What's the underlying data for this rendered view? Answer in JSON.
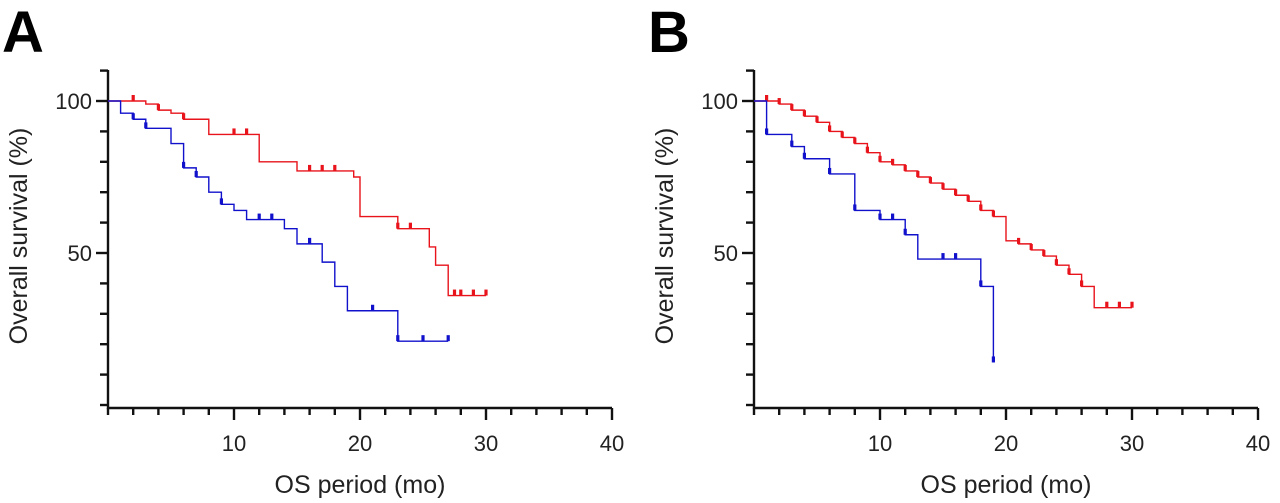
{
  "chart_data": [
    {
      "type": "line",
      "panel_label": "A",
      "xlabel": "OS period (mo)",
      "ylabel": "Overall survival (%)",
      "xlim": [
        0,
        40
      ],
      "ylim": [
        0,
        110
      ],
      "xticks": [
        10,
        20,
        30,
        40
      ],
      "yticks_labeled": [
        50,
        100
      ],
      "series": [
        {
          "color": "#e8131b",
          "steps": [
            [
              0,
              100
            ],
            [
              2,
              100
            ],
            [
              3,
              99
            ],
            [
              4,
              97
            ],
            [
              5,
              96
            ],
            [
              6,
              94
            ],
            [
              8,
              89
            ],
            [
              11,
              89
            ],
            [
              12,
              80
            ],
            [
              14,
              80
            ],
            [
              15,
              77
            ],
            [
              19,
              77
            ],
            [
              19.5,
              75
            ],
            [
              20,
              62
            ],
            [
              22,
              62
            ],
            [
              23,
              58
            ],
            [
              25,
              58
            ],
            [
              25.5,
              52
            ],
            [
              26,
              46
            ],
            [
              27,
              36
            ],
            [
              30,
              36
            ]
          ],
          "censored": [
            [
              2,
              100
            ],
            [
              4,
              97
            ],
            [
              6,
              94
            ],
            [
              10,
              89
            ],
            [
              11,
              89
            ],
            [
              16,
              77
            ],
            [
              17,
              77
            ],
            [
              18,
              77
            ],
            [
              23,
              58
            ],
            [
              24,
              58
            ],
            [
              27.5,
              36
            ],
            [
              28,
              36
            ],
            [
              29,
              36
            ],
            [
              30,
              36
            ]
          ]
        },
        {
          "color": "#1111cc",
          "steps": [
            [
              0,
              100
            ],
            [
              1,
              96
            ],
            [
              2,
              94
            ],
            [
              3,
              91
            ],
            [
              5,
              86
            ],
            [
              6,
              78
            ],
            [
              7,
              75
            ],
            [
              8,
              70
            ],
            [
              9,
              66
            ],
            [
              10,
              64
            ],
            [
              11,
              61
            ],
            [
              14,
              58
            ],
            [
              15,
              53
            ],
            [
              17,
              47
            ],
            [
              18,
              39
            ],
            [
              19,
              31
            ],
            [
              23,
              21
            ],
            [
              27,
              21
            ]
          ],
          "censored": [
            [
              2,
              94
            ],
            [
              3,
              91
            ],
            [
              6,
              78
            ],
            [
              7,
              75
            ],
            [
              9,
              66
            ],
            [
              12,
              61
            ],
            [
              13,
              61
            ],
            [
              16,
              53
            ],
            [
              21,
              31
            ],
            [
              23,
              21
            ],
            [
              25,
              21
            ],
            [
              27,
              21
            ]
          ]
        }
      ]
    },
    {
      "type": "line",
      "panel_label": "B",
      "xlabel": "OS period (mo)",
      "ylabel": "Overall survival (%)",
      "xlim": [
        0,
        40
      ],
      "ylim": [
        0,
        110
      ],
      "xticks": [
        10,
        20,
        30,
        40
      ],
      "yticks_labeled": [
        50,
        100
      ],
      "series": [
        {
          "color": "#e8131b",
          "steps": [
            [
              0,
              100
            ],
            [
              1,
              100
            ],
            [
              2,
              99
            ],
            [
              3,
              97
            ],
            [
              4,
              95
            ],
            [
              5,
              93
            ],
            [
              6,
              90
            ],
            [
              7,
              88
            ],
            [
              8,
              86
            ],
            [
              9,
              83
            ],
            [
              10,
              80
            ],
            [
              11,
              79
            ],
            [
              12,
              77
            ],
            [
              13,
              75
            ],
            [
              14,
              73
            ],
            [
              15,
              71
            ],
            [
              16,
              69
            ],
            [
              17,
              67
            ],
            [
              18,
              64
            ],
            [
              19,
              62
            ],
            [
              20,
              54
            ],
            [
              21,
              53
            ],
            [
              22,
              51
            ],
            [
              23,
              49
            ],
            [
              24,
              46
            ],
            [
              25,
              43
            ],
            [
              26,
              39
            ],
            [
              27,
              32
            ],
            [
              30,
              32
            ]
          ],
          "censored": [
            [
              1,
              100
            ],
            [
              2,
              99
            ],
            [
              3,
              97
            ],
            [
              4,
              95
            ],
            [
              5,
              93
            ],
            [
              6,
              90
            ],
            [
              7,
              88
            ],
            [
              8,
              86
            ],
            [
              9,
              83
            ],
            [
              10,
              80
            ],
            [
              11,
              79
            ],
            [
              12,
              77
            ],
            [
              13,
              75
            ],
            [
              14,
              73
            ],
            [
              15,
              71
            ],
            [
              16,
              69
            ],
            [
              17,
              67
            ],
            [
              18,
              64
            ],
            [
              19,
              62
            ],
            [
              21,
              53
            ],
            [
              22,
              51
            ],
            [
              23,
              49
            ],
            [
              24,
              46
            ],
            [
              25,
              43
            ],
            [
              26,
              39
            ],
            [
              28,
              32
            ],
            [
              29,
              32
            ],
            [
              30,
              32
            ]
          ]
        },
        {
          "color": "#1111cc",
          "steps": [
            [
              0,
              100
            ],
            [
              1,
              89
            ],
            [
              3,
              85
            ],
            [
              4,
              81
            ],
            [
              6,
              76
            ],
            [
              8,
              64
            ],
            [
              10,
              61
            ],
            [
              12,
              56
            ],
            [
              13,
              48
            ],
            [
              18,
              39
            ],
            [
              19,
              14
            ]
          ],
          "censored": [
            [
              1,
              89
            ],
            [
              3,
              85
            ],
            [
              4,
              81
            ],
            [
              6,
              76
            ],
            [
              8,
              64
            ],
            [
              10,
              61
            ],
            [
              11,
              61
            ],
            [
              12,
              56
            ],
            [
              15,
              48
            ],
            [
              16,
              48
            ],
            [
              18,
              39
            ],
            [
              19,
              14
            ]
          ]
        }
      ]
    }
  ]
}
